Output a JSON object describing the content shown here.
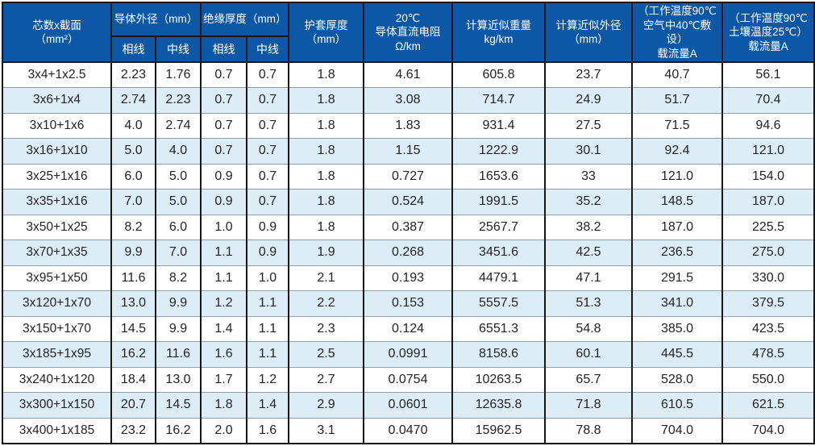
{
  "table": {
    "header": {
      "spec": "芯数x截面\n（mm²）",
      "conductor_od": "导体外径（mm）",
      "insulation": "绝缘厚度（mm）",
      "phase1": "相线",
      "neutral1": "中线",
      "phase2": "相线",
      "neutral2": "中线",
      "sheath": "护套厚度\n（mm）",
      "resistance": "20℃\n导体直流电阻\nΩ/km",
      "weight": "计算近似重量\nkg/km",
      "od": "计算近似外径\n（mm）",
      "ampacity_air": "（工作温度90℃\n空气中40℃敷设）\n载流量A",
      "ampacity_soil": "（工作温度90℃\n土壤温度25℃）\n载流量A"
    },
    "rows": [
      [
        "3x4+1x2.5",
        "2.23",
        "1.76",
        "0.7",
        "0.7",
        "1.8",
        "4.61",
        "605.8",
        "23.7",
        "40.7",
        "56.1"
      ],
      [
        "3x6+1x4",
        "2.74",
        "2.23",
        "0.7",
        "0.7",
        "1.8",
        "3.08",
        "714.7",
        "24.9",
        "51.7",
        "70.4"
      ],
      [
        "3x10+1x6",
        "4.0",
        "2.74",
        "0.7",
        "0.7",
        "1.8",
        "1.83",
        "931.4",
        "27.5",
        "71.5",
        "94.6"
      ],
      [
        "3x16+1x10",
        "5.0",
        "4.0",
        "0.7",
        "0.7",
        "1.8",
        "1.15",
        "1222.9",
        "30.1",
        "92.4",
        "121.0"
      ],
      [
        "3x25+1x16",
        "6.0",
        "5.0",
        "0.9",
        "0.7",
        "1.8",
        "0.727",
        "1653.6",
        "33",
        "121.0",
        "154.0"
      ],
      [
        "3x35+1x16",
        "7.0",
        "5.0",
        "0.9",
        "0.7",
        "1.8",
        "0.524",
        "1991.5",
        "35.2",
        "148.5",
        "187.0"
      ],
      [
        "3x50+1x25",
        "8.2",
        "6.0",
        "1.0",
        "0.9",
        "1.8",
        "0.387",
        "2567.7",
        "38.2",
        "187.0",
        "225.5"
      ],
      [
        "3x70+1x35",
        "9.9",
        "7.0",
        "1.1",
        "0.9",
        "1.9",
        "0.268",
        "3451.6",
        "42.5",
        "236.5",
        "275.0"
      ],
      [
        "3x95+1x50",
        "11.6",
        "8.2",
        "1.1",
        "1.0",
        "2.1",
        "0.193",
        "4479.1",
        "47.1",
        "291.5",
        "330.0"
      ],
      [
        "3x120+1x70",
        "13.0",
        "9.9",
        "1.2",
        "1.1",
        "2.2",
        "0.153",
        "5557.5",
        "51.3",
        "341.0",
        "379.5"
      ],
      [
        "3x150+1x70",
        "14.5",
        "9.9",
        "1.4",
        "1.1",
        "2.3",
        "0.124",
        "6551.3",
        "54.8",
        "385.0",
        "423.5"
      ],
      [
        "3x185+1x95",
        "16.2",
        "11.6",
        "1.6",
        "1.1",
        "2.5",
        "0.0991",
        "8158.6",
        "60.1",
        "445.5",
        "478.5"
      ],
      [
        "3x240+1x120",
        "18.4",
        "13.0",
        "1.7",
        "1.2",
        "2.7",
        "0.0754",
        "10263.5",
        "65.7",
        "528.0",
        "550.0"
      ],
      [
        "3x300+1x150",
        "20.7",
        "14.5",
        "1.8",
        "1.4",
        "2.9",
        "0.0601",
        "12635.8",
        "71.8",
        "610.5",
        "621.5"
      ],
      [
        "3x400+1x185",
        "23.2",
        "16.2",
        "2.0",
        "1.6",
        "3.1",
        "0.0470",
        "15962.5",
        "78.8",
        "704.0",
        "704.0"
      ]
    ],
    "colors": {
      "header_bg": "#0c58a6",
      "header_text": "#ffffff",
      "row_alt_bg": "#ddedf8",
      "row_bg": "#ffffff",
      "grid_dark": "#161616",
      "grid_light": "#93a0ab"
    }
  }
}
